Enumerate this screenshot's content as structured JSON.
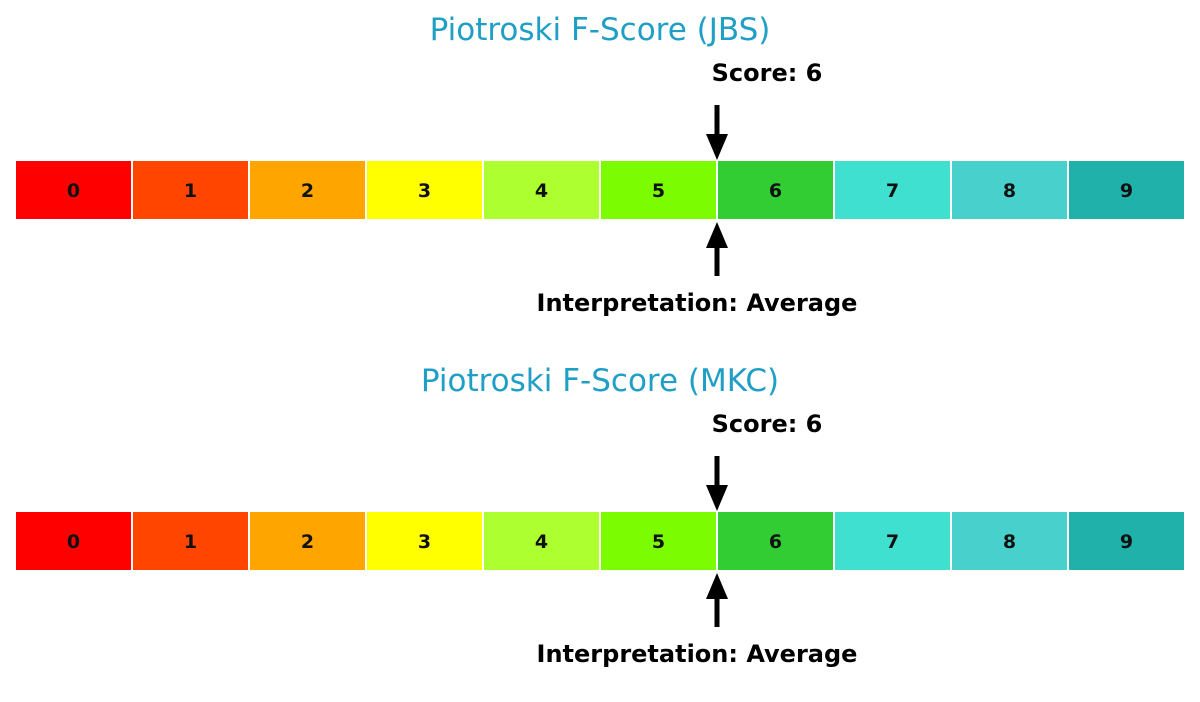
{
  "chart_data": [
    {
      "type": "gauge-bar",
      "title": "Piotroski F-Score (JBS)",
      "categories": [
        "0",
        "1",
        "2",
        "3",
        "4",
        "5",
        "6",
        "7",
        "8",
        "9"
      ],
      "colors": [
        "#ff0000",
        "#ff4500",
        "#ffa500",
        "#ffff00",
        "#adff2f",
        "#7cfc00",
        "#32cd32",
        "#40e0d0",
        "#48d1cc",
        "#20b2aa"
      ],
      "score": 6,
      "score_label": "Score: 6",
      "interpretation_label": "Interpretation: Average"
    },
    {
      "type": "gauge-bar",
      "title": "Piotroski F-Score (MKC)",
      "categories": [
        "0",
        "1",
        "2",
        "3",
        "4",
        "5",
        "6",
        "7",
        "8",
        "9"
      ],
      "colors": [
        "#ff0000",
        "#ff4500",
        "#ffa500",
        "#ffff00",
        "#adff2f",
        "#7cfc00",
        "#32cd32",
        "#40e0d0",
        "#48d1cc",
        "#20b2aa"
      ],
      "score": 6,
      "score_label": "Score: 6",
      "interpretation_label": "Interpretation: Average"
    }
  ]
}
